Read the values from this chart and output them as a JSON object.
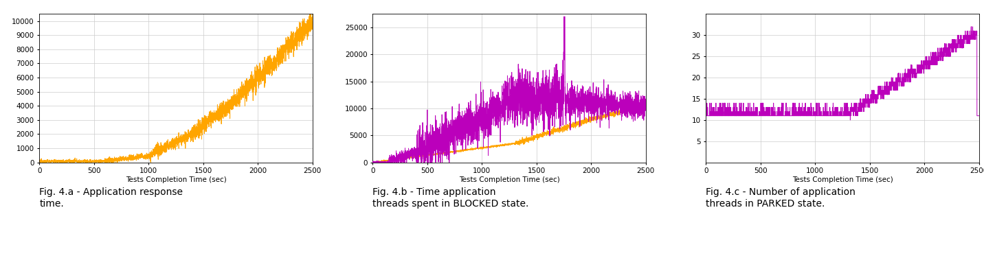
{
  "fig_a": {
    "title": "Fig. 4.a - Application response\ntime.",
    "xlabel": "Tests Completion Time (sec)",
    "color": "#FFA500",
    "ylim": [
      0,
      10500
    ],
    "xlim": [
      0,
      2500
    ],
    "yticks": [
      0,
      1000,
      2000,
      3000,
      4000,
      5000,
      6000,
      7000,
      8000,
      9000,
      10000
    ],
    "xticks": [
      0,
      500,
      1000,
      1500,
      2000,
      2500
    ]
  },
  "fig_b": {
    "title": "Fig. 4.b - Time application\nthreads spent in BLOCKED state.",
    "xlabel": "Tests Completion Time (sec)",
    "color_purple": "#BB00BB",
    "color_orange": "#FFA500",
    "ylim": [
      0,
      27500
    ],
    "xlim": [
      0,
      2500
    ],
    "yticks": [
      0,
      5000,
      10000,
      15000,
      20000,
      25000
    ],
    "xticks": [
      0,
      500,
      1000,
      1500,
      2000,
      2500
    ]
  },
  "fig_c": {
    "title": "Fig. 4.c - Number of application\nthreads in PARKED state.",
    "xlabel": "Tests Completion Time (sec)",
    "color": "#BB00BB",
    "ylim": [
      0,
      35
    ],
    "xlim": [
      0,
      2500
    ],
    "yticks": [
      5,
      10,
      15,
      20,
      25,
      30
    ],
    "xticks": [
      0,
      500,
      1000,
      1500,
      2000,
      2500
    ]
  },
  "background_color": "#ffffff",
  "grid_color": "#cccccc",
  "caption_fontsize": 10,
  "tick_fontsize": 7.5,
  "axis_label_fontsize": 7.5
}
